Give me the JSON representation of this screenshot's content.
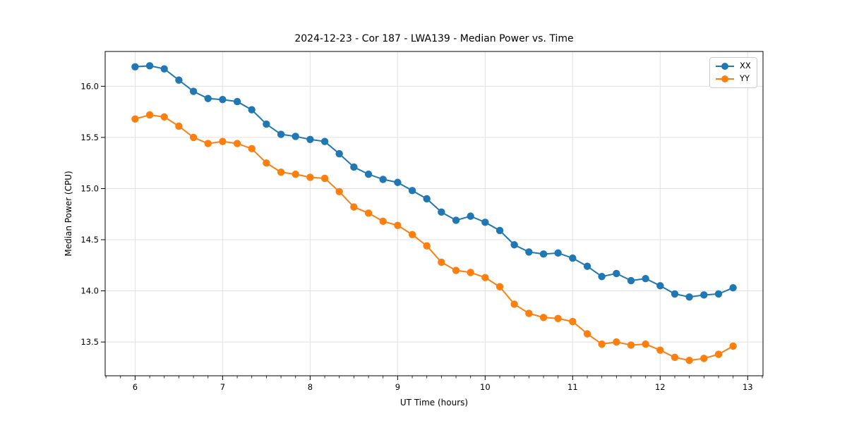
{
  "chart_data": {
    "type": "line",
    "title": "2024-12-23 - Cor 187 - LWA139 - Median Power vs. Time",
    "xlabel": "UT Time (hours)",
    "ylabel": "Median Power (CPU)",
    "xlim": [
      5.658,
      13.175
    ],
    "ylim": [
      13.17,
      16.34
    ],
    "xticks": [
      6,
      7,
      8,
      9,
      10,
      11,
      12,
      13
    ],
    "xtick_labels": [
      "6",
      "7",
      "8",
      "9",
      "10",
      "11",
      "12",
      "13"
    ],
    "yticks": [
      13.5,
      14.0,
      14.5,
      15.0,
      15.5,
      16.0
    ],
    "ytick_labels": [
      "13.5",
      "14.0",
      "14.5",
      "15.0",
      "15.5",
      "16.0"
    ],
    "x_minor_interval": 0.16667,
    "grid": true,
    "legend_position": "upper right",
    "x": [
      6.0,
      6.167,
      6.333,
      6.5,
      6.667,
      6.833,
      7.0,
      7.167,
      7.333,
      7.5,
      7.667,
      7.833,
      8.0,
      8.167,
      8.333,
      8.5,
      8.667,
      8.833,
      9.0,
      9.167,
      9.333,
      9.5,
      9.667,
      9.833,
      10.0,
      10.167,
      10.333,
      10.5,
      10.667,
      10.833,
      11.0,
      11.167,
      11.333,
      11.5,
      11.667,
      11.833,
      12.0,
      12.167,
      12.333,
      12.5,
      12.667,
      12.833
    ],
    "series": [
      {
        "name": "XX",
        "color": "#1f77b4",
        "values": [
          16.19,
          16.2,
          16.17,
          16.06,
          15.95,
          15.88,
          15.87,
          15.85,
          15.77,
          15.63,
          15.53,
          15.51,
          15.48,
          15.46,
          15.34,
          15.21,
          15.14,
          15.09,
          15.06,
          14.98,
          14.9,
          14.77,
          14.69,
          14.73,
          14.67,
          14.59,
          14.45,
          14.38,
          14.36,
          14.37,
          14.32,
          14.24,
          14.14,
          14.17,
          14.1,
          14.12,
          14.05,
          13.97,
          13.94,
          13.96,
          13.97,
          14.03
        ]
      },
      {
        "name": "YY",
        "color": "#ff7f0e",
        "values": [
          15.68,
          15.72,
          15.7,
          15.61,
          15.5,
          15.44,
          15.46,
          15.44,
          15.39,
          15.25,
          15.16,
          15.14,
          15.11,
          15.1,
          14.97,
          14.82,
          14.76,
          14.68,
          14.64,
          14.55,
          14.44,
          14.28,
          14.2,
          14.18,
          14.13,
          14.04,
          13.87,
          13.78,
          13.74,
          13.73,
          13.7,
          13.58,
          13.48,
          13.5,
          13.47,
          13.48,
          13.42,
          13.35,
          13.32,
          13.34,
          13.38,
          13.46
        ]
      }
    ]
  },
  "style": {
    "grid_color": "#e0e0e0",
    "axis_color": "#000000",
    "marker_radius": 5.2,
    "line_width": 2
  }
}
